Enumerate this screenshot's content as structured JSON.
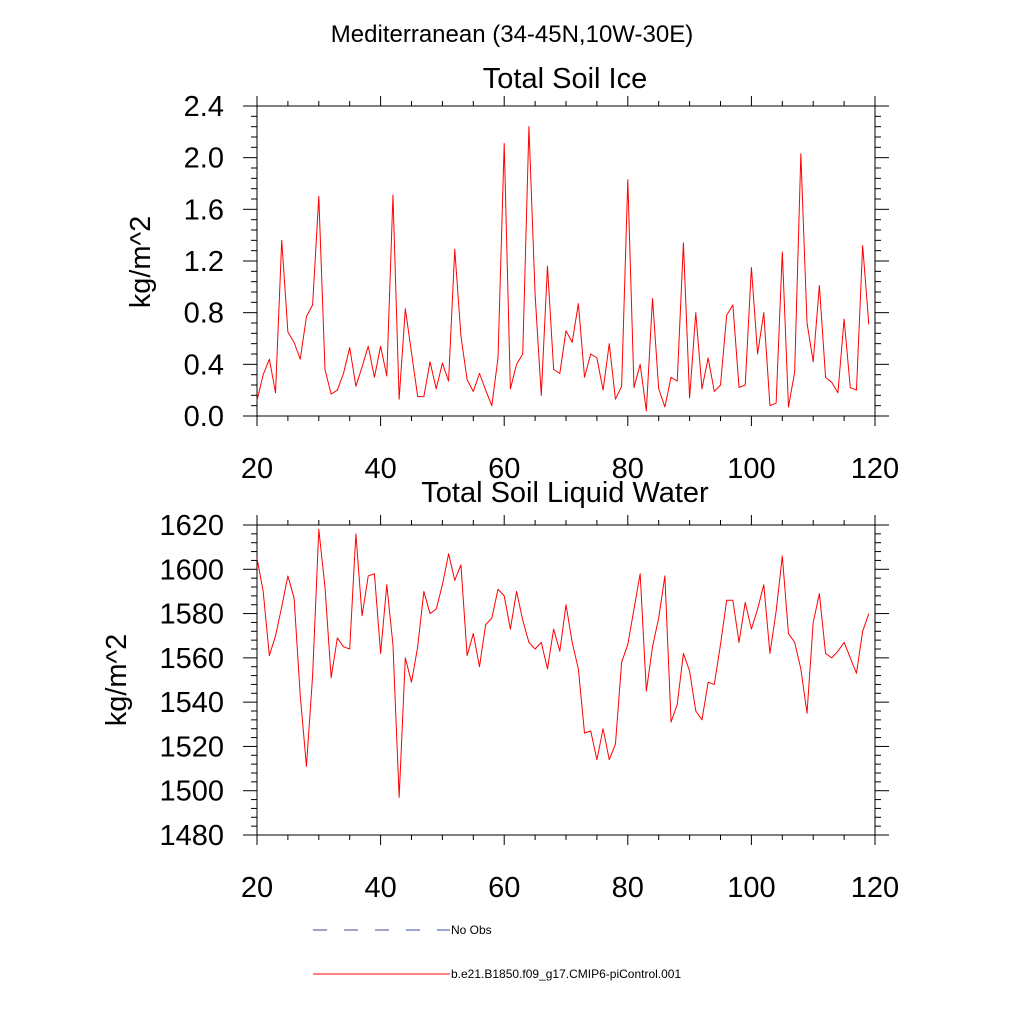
{
  "figure": {
    "suptitle": "Mediterranean (34-45N,10W-30E)"
  },
  "chart_data": [
    {
      "type": "line",
      "title": "Total Soil Ice",
      "xlabel": "",
      "ylabel": "kg/m^2",
      "xlim": [
        20,
        120
      ],
      "ylim": [
        0.0,
        2.4
      ],
      "xticks": [
        20,
        40,
        60,
        80,
        100,
        120
      ],
      "yticks": [
        0.0,
        0.4,
        0.8,
        1.2,
        1.6,
        2.0,
        2.4
      ],
      "xtick_labels": [
        "20",
        "40",
        "60",
        "80",
        "100",
        "120"
      ],
      "ytick_labels": [
        "0.0",
        "0.4",
        "0.8",
        "1.2",
        "1.6",
        "2.0",
        "2.4"
      ],
      "x_start": 20,
      "series": [
        {
          "name": "b.e21.B1850.f09_g17.CMIP6-piControl.001",
          "color": "#ff0000",
          "values": [
            0.12,
            0.32,
            0.44,
            0.18,
            1.36,
            0.65,
            0.57,
            0.44,
            0.77,
            0.86,
            1.7,
            0.36,
            0.17,
            0.2,
            0.33,
            0.53,
            0.23,
            0.38,
            0.54,
            0.3,
            0.54,
            0.31,
            1.71,
            0.13,
            0.83,
            0.49,
            0.15,
            0.15,
            0.42,
            0.21,
            0.41,
            0.27,
            1.29,
            0.62,
            0.28,
            0.19,
            0.33,
            0.2,
            0.08,
            0.45,
            2.11,
            0.21,
            0.4,
            0.48,
            2.24,
            0.94,
            0.16,
            1.16,
            0.36,
            0.33,
            0.66,
            0.57,
            0.87,
            0.3,
            0.48,
            0.45,
            0.2,
            0.56,
            0.13,
            0.23,
            1.83,
            0.22,
            0.4,
            0.04,
            0.91,
            0.21,
            0.07,
            0.3,
            0.27,
            1.34,
            0.14,
            0.8,
            0.21,
            0.45,
            0.19,
            0.24,
            0.78,
            0.86,
            0.22,
            0.24,
            1.15,
            0.48,
            0.8,
            0.08,
            0.1,
            1.27,
            0.07,
            0.34,
            2.03,
            0.72,
            0.42,
            1.01,
            0.3,
            0.26,
            0.18,
            0.75,
            0.22,
            0.2,
            1.32,
            0.71
          ]
        }
      ]
    },
    {
      "type": "line",
      "title": "Total Soil Liquid Water",
      "xlabel": "",
      "ylabel": "kg/m^2",
      "xlim": [
        20,
        120
      ],
      "ylim": [
        1480,
        1620
      ],
      "xticks": [
        20,
        40,
        60,
        80,
        100,
        120
      ],
      "yticks": [
        1480,
        1500,
        1520,
        1540,
        1560,
        1580,
        1600,
        1620
      ],
      "xtick_labels": [
        "20",
        "40",
        "60",
        "80",
        "100",
        "120"
      ],
      "ytick_labels": [
        "1480",
        "1500",
        "1520",
        "1540",
        "1560",
        "1580",
        "1600",
        "1620"
      ],
      "x_start": 20,
      "series": [
        {
          "name": "b.e21.B1850.f09_g17.CMIP6-piControl.001",
          "color": "#ff0000",
          "values": [
            1605,
            1590,
            1561,
            1570,
            1583,
            1597,
            1587,
            1543,
            1511,
            1552,
            1618,
            1592,
            1551,
            1569,
            1565,
            1564,
            1616,
            1579,
            1597,
            1598,
            1562,
            1593,
            1566,
            1497,
            1560,
            1549,
            1565,
            1590,
            1580,
            1582,
            1593,
            1607,
            1595,
            1602,
            1561,
            1571,
            1556,
            1575,
            1578,
            1591,
            1588,
            1573,
            1590,
            1577,
            1567,
            1564,
            1567,
            1555,
            1573,
            1563,
            1584,
            1567,
            1555,
            1526,
            1527,
            1514,
            1528,
            1514,
            1521,
            1558,
            1566,
            1582,
            1598,
            1545,
            1565,
            1578,
            1597,
            1531,
            1539,
            1562,
            1554,
            1536,
            1532,
            1549,
            1548,
            1566,
            1586,
            1586,
            1567,
            1585,
            1573,
            1582,
            1593,
            1562,
            1581,
            1606,
            1571,
            1567,
            1555,
            1535,
            1576,
            1589,
            1562,
            1560,
            1563,
            1567,
            1560,
            1553,
            1572,
            1580
          ]
        }
      ]
    }
  ],
  "legend": [
    {
      "label": "No Obs",
      "color": "#3b4a9c",
      "style": "dashed"
    },
    {
      "label": "b.e21.B1850.f09_g17.CMIP6-piControl.001",
      "color": "#ff0000",
      "style": "solid"
    }
  ]
}
